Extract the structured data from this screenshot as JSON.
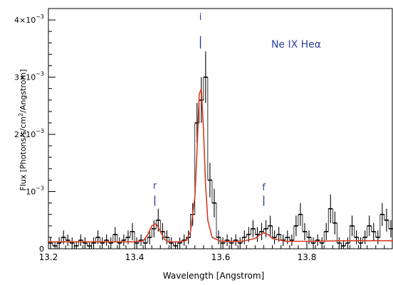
{
  "chart_data": {
    "type": "line",
    "title": "Ne IX Heα",
    "xlabel": "Wavelength [Angstrom]",
    "ylabel": "Flux [Photons/s/cm²/Angstrom]",
    "xlim": [
      13.2,
      14.0
    ],
    "ylim": [
      0,
      0.0042
    ],
    "x_ticks": [
      {
        "value": 13.2,
        "label": "13.2"
      },
      {
        "value": 13.4,
        "label": "13.4"
      },
      {
        "value": 13.6,
        "label": "13.6"
      },
      {
        "value": 13.8,
        "label": "13.8"
      }
    ],
    "y_ticks": [
      {
        "value": 0,
        "base": "0",
        "exp": ""
      },
      {
        "value": 0.001,
        "base": "10",
        "exp": "−3"
      },
      {
        "value": 0.002,
        "base": "2×10",
        "exp": "−3"
      },
      {
        "value": 0.003,
        "base": "3×10",
        "exp": "−3"
      },
      {
        "value": 0.004,
        "base": "4×10",
        "exp": "−3"
      }
    ],
    "bin_width": 0.01,
    "series": [
      {
        "kind": "data-histogram-with-errors",
        "x": [
          13.2,
          13.21,
          13.22,
          13.23,
          13.24,
          13.25,
          13.26,
          13.27,
          13.28,
          13.29,
          13.3,
          13.31,
          13.32,
          13.33,
          13.34,
          13.35,
          13.36,
          13.37,
          13.38,
          13.39,
          13.4,
          13.41,
          13.42,
          13.43,
          13.44,
          13.45,
          13.46,
          13.47,
          13.48,
          13.49,
          13.5,
          13.51,
          13.52,
          13.53,
          13.54,
          13.55,
          13.56,
          13.57,
          13.58,
          13.59,
          13.6,
          13.61,
          13.62,
          13.63,
          13.64,
          13.65,
          13.66,
          13.67,
          13.68,
          13.69,
          13.7,
          13.71,
          13.72,
          13.73,
          13.74,
          13.75,
          13.76,
          13.77,
          13.78,
          13.79,
          13.8,
          13.81,
          13.82,
          13.83,
          13.84,
          13.85,
          13.86,
          13.87,
          13.88,
          13.89,
          13.9,
          13.91,
          13.92,
          13.93,
          13.94,
          13.95,
          13.96,
          13.97,
          13.98,
          13.99
        ],
        "y": [
          0.0001,
          5e-05,
          0.0001,
          0.0002,
          0.00015,
          0.0001,
          5e-05,
          0.00015,
          0.0001,
          5e-05,
          0.0001,
          0.0002,
          0.0001,
          0.00015,
          0.0001,
          0.00025,
          0.0001,
          0.00015,
          0.0002,
          0.0003,
          0.0001,
          0.00015,
          0.0001,
          0.0002,
          0.00035,
          0.0005,
          0.0003,
          0.0002,
          0.0001,
          5e-05,
          0.0001,
          0.00015,
          0.0002,
          0.0006,
          0.0022,
          0.0026,
          0.003,
          0.0012,
          0.0008,
          0.0002,
          0.0001,
          0.00015,
          0.0001,
          0.00015,
          0.0001,
          0.0002,
          0.00025,
          0.00035,
          0.00025,
          0.0003,
          0.00035,
          0.0004,
          0.0002,
          0.00025,
          0.00015,
          0.0002,
          0.00015,
          0.0004,
          0.0006,
          0.0003,
          0.0002,
          0.0001,
          0.00015,
          0.0001,
          0.0003,
          0.0007,
          0.00045,
          0.0001,
          5e-05,
          0.0001,
          0.0004,
          0.0002,
          0.0001,
          0.0002,
          0.0004,
          0.0003,
          0.0002,
          0.0006,
          0.0005,
          0.00035
        ],
        "err": [
          0.0001,
          8e-05,
          0.0001,
          0.00012,
          0.0001,
          0.0001,
          8e-05,
          0.0001,
          0.0001,
          8e-05,
          0.0001,
          0.00012,
          0.0001,
          0.0001,
          0.0001,
          0.00013,
          0.0001,
          0.0001,
          0.00012,
          0.00015,
          0.0001,
          0.0001,
          0.0001,
          0.00012,
          0.00015,
          0.0002,
          0.00015,
          0.00012,
          0.0001,
          8e-05,
          0.0001,
          0.0001,
          0.00012,
          0.0002,
          0.00035,
          0.0004,
          0.00045,
          0.0003,
          0.00025,
          0.00012,
          0.0001,
          0.0001,
          0.0001,
          0.0001,
          0.0001,
          0.00012,
          0.00013,
          0.00015,
          0.00013,
          0.00015,
          0.00015,
          0.00018,
          0.00012,
          0.00013,
          0.0001,
          0.00012,
          0.0001,
          0.00018,
          0.0002,
          0.00015,
          0.00012,
          0.0001,
          0.0001,
          0.0001,
          0.00015,
          0.00025,
          0.0002,
          0.0001,
          8e-05,
          0.0001,
          0.00018,
          0.00012,
          0.0001,
          0.00012,
          0.00018,
          0.00015,
          0.00012,
          0.0002,
          0.0002,
          0.00015
        ],
        "color": "#000000"
      },
      {
        "kind": "model-curve",
        "x": [
          13.2,
          13.3,
          13.4,
          13.42,
          13.43,
          13.44,
          13.45,
          13.46,
          13.47,
          13.48,
          13.5,
          13.52,
          13.53,
          13.54,
          13.545,
          13.55,
          13.555,
          13.56,
          13.565,
          13.57,
          13.58,
          13.6,
          13.65,
          13.68,
          13.69,
          13.7,
          13.71,
          13.72,
          13.75,
          13.8,
          13.9,
          14.0
        ],
        "y": [
          0.00012,
          0.00012,
          0.00012,
          0.00014,
          0.00024,
          0.0004,
          0.00044,
          0.0003,
          0.00016,
          0.00012,
          0.00012,
          0.00014,
          0.0003,
          0.0009,
          0.0017,
          0.0027,
          0.0028,
          0.0021,
          0.0011,
          0.0005,
          0.0002,
          0.00013,
          0.00013,
          0.00018,
          0.00024,
          0.00028,
          0.00025,
          0.00018,
          0.00013,
          0.00013,
          0.00014,
          0.00014
        ],
        "color": "#d63a22"
      }
    ],
    "annotations": [
      {
        "label": "r",
        "x": 13.447,
        "y": 0.00105,
        "tick_top": 0.00093,
        "tick_bottom": 0.00075
      },
      {
        "label": "i",
        "x": 13.553,
        "y": 0.004,
        "tick_top": 0.00372,
        "tick_bottom": 0.0035
      },
      {
        "label": "f",
        "x": 13.7,
        "y": 0.00102,
        "tick_top": 0.00093,
        "tick_bottom": 0.00075
      }
    ],
    "annotation_color": "#2e3f9e"
  }
}
